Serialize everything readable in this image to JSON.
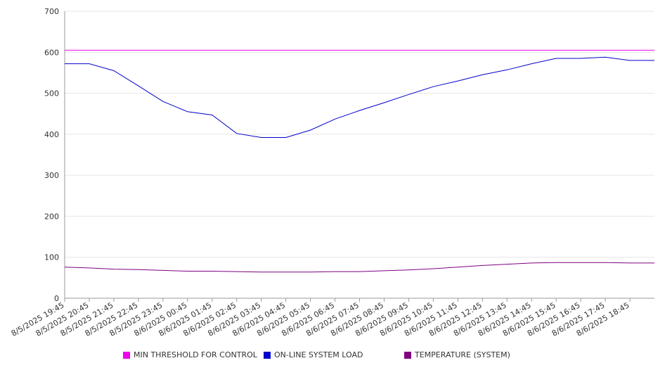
{
  "chart_data": {
    "type": "line",
    "ylim": [
      0,
      700
    ],
    "yticks": [
      "0",
      "100",
      "200",
      "300",
      "400",
      "500",
      "600",
      "700"
    ],
    "x": [
      "8/5/2025 19:45",
      "8/5/2025 20:45",
      "8/5/2025 21:45",
      "8/5/2025 22:45",
      "8/5/2025 23:45",
      "8/6/2025 00:45",
      "8/6/2025 01:45",
      "8/6/2025 02:45",
      "8/6/2025 03:45",
      "8/6/2025 04:45",
      "8/6/2025 05:45",
      "8/6/2025 06:45",
      "8/6/2025 07:45",
      "8/6/2025 08:45",
      "8/6/2025 09:45",
      "8/6/2025 10:45",
      "8/6/2025 11:45",
      "8/6/2025 12:45",
      "8/6/2025 13:45",
      "8/6/2025 14:45",
      "8/6/2025 15:45",
      "8/6/2025 16:45",
      "8/6/2025 17:45",
      "8/6/2025 18:45"
    ],
    "grid": true,
    "legend_position": "bottom",
    "series": [
      {
        "name": "MIN THRESHOLD FOR CONTROL",
        "color": "#ee00ee",
        "values": [
          605,
          605,
          605,
          605,
          605,
          605,
          605,
          605,
          605,
          605,
          605,
          605,
          605,
          605,
          605,
          605,
          605,
          605,
          605,
          605,
          605,
          605,
          605,
          605
        ]
      },
      {
        "name": "ON-LINE SYSTEM LOAD",
        "color": "#0000cc",
        "values": [
          572,
          572,
          555,
          518,
          480,
          455,
          447,
          402,
          392,
          392,
          410,
          437,
          458,
          477,
          497,
          516,
          530,
          545,
          557,
          572,
          585,
          585,
          588,
          580
        ]
      },
      {
        "name": "TEMPERATURE (SYSTEM)",
        "color": "#800080",
        "values": [
          76,
          74,
          71,
          70,
          68,
          66,
          66,
          65,
          64,
          64,
          64,
          65,
          65,
          67,
          69,
          72,
          76,
          80,
          83,
          86,
          87,
          87,
          87,
          86
        ]
      }
    ]
  }
}
